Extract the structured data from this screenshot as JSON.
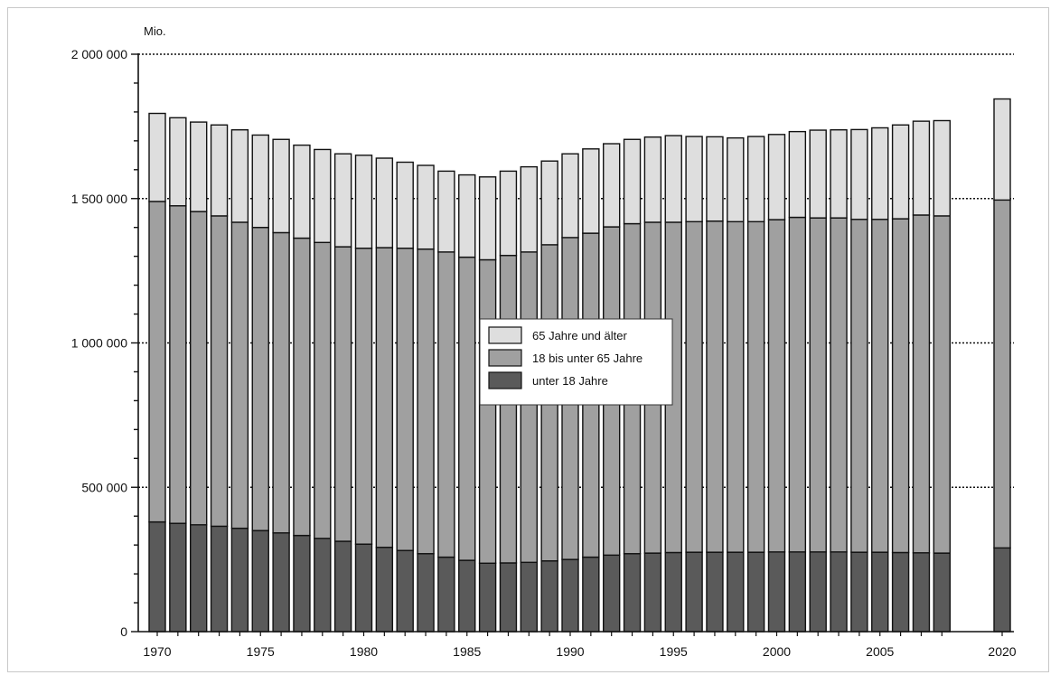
{
  "chart_data": {
    "type": "bar",
    "stacked": true,
    "unit_label": "Mio.",
    "title": "",
    "xlabel": "",
    "ylabel": "",
    "ylim": [
      0,
      2000000
    ],
    "y_ticks": [
      0,
      500000,
      1000000,
      1500000,
      2000000
    ],
    "y_tick_labels": [
      "0",
      "500 000",
      "1 000 000",
      "1 500 000",
      "2 000 000"
    ],
    "x_tick_labels": [
      "1970",
      "1975",
      "1980",
      "1985",
      "1990",
      "1995",
      "2000",
      "2005",
      "2020"
    ],
    "grid": "dotted lines at 500 000, 1 000 000, 1 500 000, 2 000 000",
    "legend_position": "center",
    "categories": [
      "1970",
      "1971",
      "1972",
      "1973",
      "1974",
      "1975",
      "1976",
      "1977",
      "1978",
      "1979",
      "1980",
      "1981",
      "1982",
      "1983",
      "1984",
      "1985",
      "1986",
      "1987",
      "1988",
      "1989",
      "1990",
      "1991",
      "1992",
      "1993",
      "1994",
      "1995",
      "1996",
      "1997",
      "1998",
      "1999",
      "2000",
      "2001",
      "2002",
      "2003",
      "2004",
      "2005",
      "2006",
      "2007",
      "2008",
      "2020"
    ],
    "series": [
      {
        "name": "unter 18 Jahre",
        "color": "#5a5a5a",
        "values": [
          380000,
          375000,
          370000,
          365000,
          358000,
          350000,
          342000,
          333000,
          323000,
          313000,
          303000,
          292000,
          281000,
          270000,
          258000,
          247000,
          237000,
          238000,
          240000,
          245000,
          250000,
          258000,
          265000,
          270000,
          272000,
          274000,
          275000,
          275000,
          275000,
          275000,
          276000,
          276000,
          276000,
          276000,
          275000,
          275000,
          274000,
          273000,
          272000,
          290000
        ]
      },
      {
        "name": "18 bis unter 65 Jahre",
        "color": "#a0a0a0",
        "values": [
          1110000,
          1100000,
          1085000,
          1075000,
          1060000,
          1050000,
          1040000,
          1030000,
          1025000,
          1020000,
          1025000,
          1038000,
          1047000,
          1055000,
          1057000,
          1050000,
          1051000,
          1065000,
          1075000,
          1095000,
          1115000,
          1122000,
          1137000,
          1143000,
          1146000,
          1144000,
          1145000,
          1147000,
          1145000,
          1145000,
          1151000,
          1159000,
          1157000,
          1157000,
          1153000,
          1153000,
          1156000,
          1170000,
          1168000,
          1205000
        ]
      },
      {
        "name": "65 Jahre und älter",
        "color": "#dedede",
        "values": [
          305000,
          305000,
          310000,
          315000,
          320000,
          320000,
          323000,
          322000,
          322000,
          322000,
          322000,
          310000,
          298000,
          290000,
          280000,
          285000,
          287000,
          292000,
          295000,
          290000,
          290000,
          292000,
          288000,
          292000,
          295000,
          300000,
          295000,
          292000,
          290000,
          295000,
          295000,
          297000,
          304000,
          305000,
          311000,
          317000,
          325000,
          325000,
          330000,
          350000
        ]
      }
    ]
  }
}
